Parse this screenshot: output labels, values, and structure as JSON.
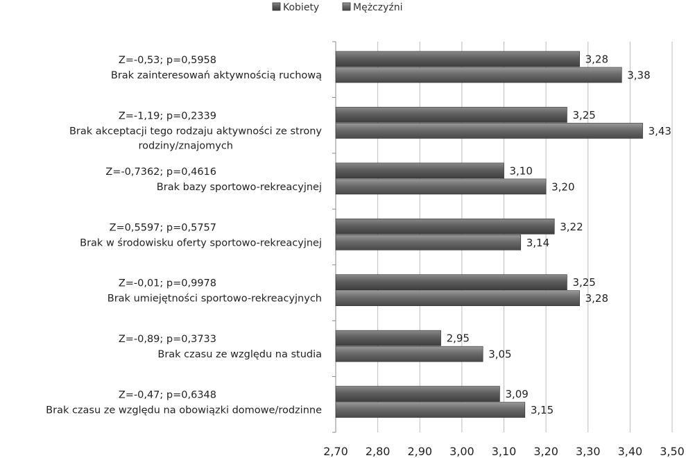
{
  "chart_data": {
    "type": "bar",
    "orientation": "horizontal",
    "xlim": [
      2.7,
      3.5
    ],
    "xticks": [
      "2,70",
      "2,80",
      "2,90",
      "3,00",
      "3,10",
      "3,20",
      "3,30",
      "3,40",
      "3,50"
    ],
    "grid": true,
    "legend_position": "top-center",
    "series": [
      {
        "name": "Kobiety",
        "color": "#5a5a5a",
        "values": [
          3.28,
          3.25,
          3.1,
          3.22,
          3.25,
          2.95,
          3.09
        ],
        "labels": [
          "3,28",
          "3,25",
          "3,10",
          "3,22",
          "3,25",
          "2,95",
          "3,09"
        ]
      },
      {
        "name": "Mężczyźni",
        "color": "#6e6e6e",
        "values": [
          3.38,
          3.43,
          3.2,
          3.14,
          3.28,
          3.05,
          3.15
        ],
        "labels": [
          "3,38",
          "3,43",
          "3,20",
          "3,14",
          "3,28",
          "3,05",
          "3,15"
        ]
      }
    ],
    "categories": [
      {
        "lines": [
          "Brak zainteresowań aktywnością ruchową"
        ],
        "stat": "Z=-0,53;  p=0,5958"
      },
      {
        "lines": [
          "Brak akceptacji tego rodzaju aktywności ze strony",
          "rodziny/znajomych"
        ],
        "stat": "Z=-1,19;  p=0,2339"
      },
      {
        "lines": [
          "Brak bazy sportowo-rekreacyjnej"
        ],
        "stat": "Z=-0,7362;  p=0,4616"
      },
      {
        "lines": [
          "Brak w środowisku oferty sportowo-rekreacyjnej"
        ],
        "stat": "Z=0,5597;  p=0,5757"
      },
      {
        "lines": [
          "Brak umiejętności sportowo-rekreacyjnych"
        ],
        "stat": "Z=-0,01;  p=0,9978"
      },
      {
        "lines": [
          "Brak czasu ze względu na studia"
        ],
        "stat": "Z=-0,89;  p=0,3733"
      },
      {
        "lines": [
          "Brak czasu ze względu na obowiązki domowe/rodzinne"
        ],
        "stat": "Z=-0,47;  p=0,6348"
      }
    ]
  }
}
